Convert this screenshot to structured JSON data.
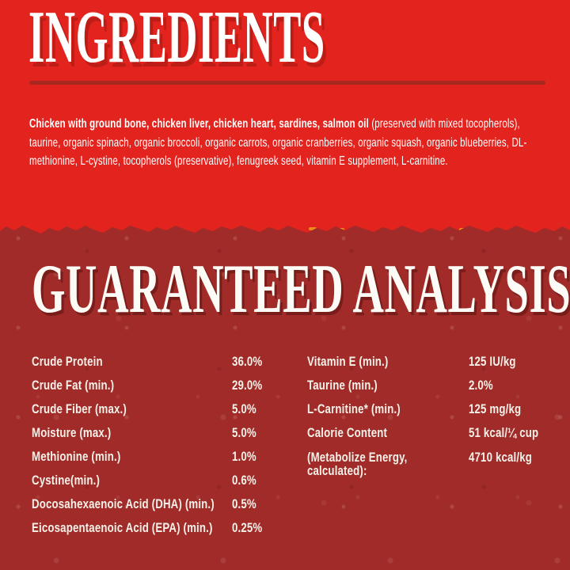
{
  "colors": {
    "top_background": "#e2231e",
    "bottom_background": "#a02b28",
    "divider_rule": "#a8271f",
    "heading_text": "#ffffff",
    "body_text": "#ffffff",
    "analysis_text": "#f6f1e9",
    "tear_speck_orange": "#ef8b1d"
  },
  "ingredients_section": {
    "heading": "INGREDIENTS",
    "ingredients_bold": "Chicken with ground bone, chicken liver, chicken heart, sardines, salmon oil",
    "ingredients_rest": " (preserved with mixed tocopherols), taurine, organic spinach, organic broccoli, organic carrots, organic cranberries, organic squash, organic blueberries, DL-methionine, L-cystine, tocopherols (preservative), fenugreek seed, vitamin E supplement, L-carnitine."
  },
  "analysis_section": {
    "heading": "GUARANTEED ANALYSIS",
    "left_rows": [
      {
        "label": "Crude Protein",
        "value": "36.0%"
      },
      {
        "label": "Crude Fat (min.)",
        "value": "29.0%"
      },
      {
        "label": "Crude Fiber (max.)",
        "value": "5.0%"
      },
      {
        "label": "Moisture (max.)",
        "value": "5.0%"
      },
      {
        "label": "Methionine (min.)",
        "value": "1.0%"
      },
      {
        "label": "Cystine(min.)",
        "value": "0.6%"
      },
      {
        "label": "Docosahexaenoic Acid (DHA) (min.)",
        "value": "0.5%"
      },
      {
        "label": "Eicosapentaenoic Acid (EPA) (min.)",
        "value": "0.25%"
      }
    ],
    "right_rows": [
      {
        "label": "Vitamin E (min.)",
        "value": "125 IU/kg"
      },
      {
        "label": "Taurine (min.)",
        "value": "2.0%"
      },
      {
        "label": "L-Carnitine* (min.)",
        "value": "125 mg/kg"
      },
      {
        "label": "Calorie Content",
        "value": "51 kcal/¼ cup"
      },
      {
        "label": "(Metabolize Energy, calculated):",
        "value": "4710 kcal/kg"
      }
    ]
  }
}
